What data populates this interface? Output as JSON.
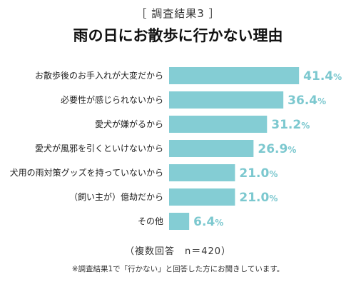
{
  "header": {
    "survey_label": "［ 調査結果3 ］"
  },
  "chart_data": {
    "type": "bar",
    "orientation": "horizontal",
    "title": "雨の日にお散歩に行かない理由",
    "categories": [
      "お散歩後のお手入れが大変だから",
      "必要性が感じられないから",
      "愛犬が嫌がるから",
      "愛犬が風邪を引くといけないから",
      "犬用の雨対策グッズを持っていないから",
      "（飼い主が）億劫だから",
      "その他"
    ],
    "values": [
      41.4,
      36.4,
      31.2,
      26.9,
      21.0,
      21.0,
      6.4
    ],
    "value_labels": [
      "41.4",
      "36.4",
      "31.2",
      "26.9",
      "21.0",
      "21.0",
      "6.4"
    ],
    "unit": "%",
    "grid": false,
    "bar_color": "#84cdd4",
    "label_color": "#7cc8cf"
  },
  "notes": {
    "sample": "（複数回答　n＝420）",
    "footnote": "※調査結果1で「行かない」と回答した方にお聞きしています。"
  }
}
